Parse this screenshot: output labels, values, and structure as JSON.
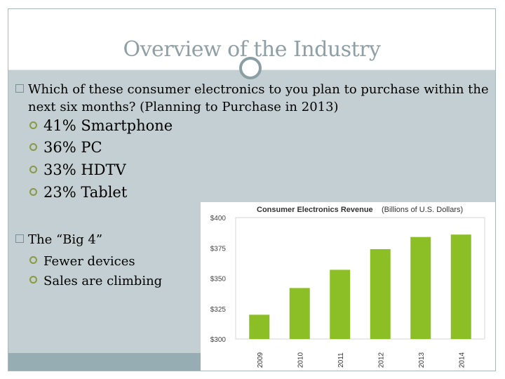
{
  "slide": {
    "title": "Overview of the Industry",
    "bullets": {
      "question_line1": "Which of these consumer electronics to you plan to purchase within the",
      "question_line2": "next six months?  (Planning to Purchase in 2013)",
      "stats": [
        "41% Smartphone",
        "36% PC",
        "33% HDTV",
        "23% Tablet"
      ],
      "big4_heading": "The “Big 4”",
      "big4_items": [
        "Fewer devices",
        "Sales are climbing"
      ]
    }
  },
  "chart_data": {
    "type": "bar",
    "title": "Consumer Electronics Revenue",
    "subtitle": "(Billions of U.S. Dollars)",
    "categories": [
      "2009",
      "2010",
      "2011",
      "2012",
      "2013",
      "2014"
    ],
    "values": [
      320,
      342,
      357,
      374,
      384,
      386
    ],
    "ylim": [
      300,
      400
    ],
    "yticks": [
      300,
      325,
      350,
      375,
      400
    ],
    "ytick_labels": [
      "$300",
      "$325",
      "$350",
      "$375",
      "$400"
    ],
    "xlabel": "",
    "ylabel": "",
    "grid": false,
    "bar_color": "#8cbf26"
  }
}
